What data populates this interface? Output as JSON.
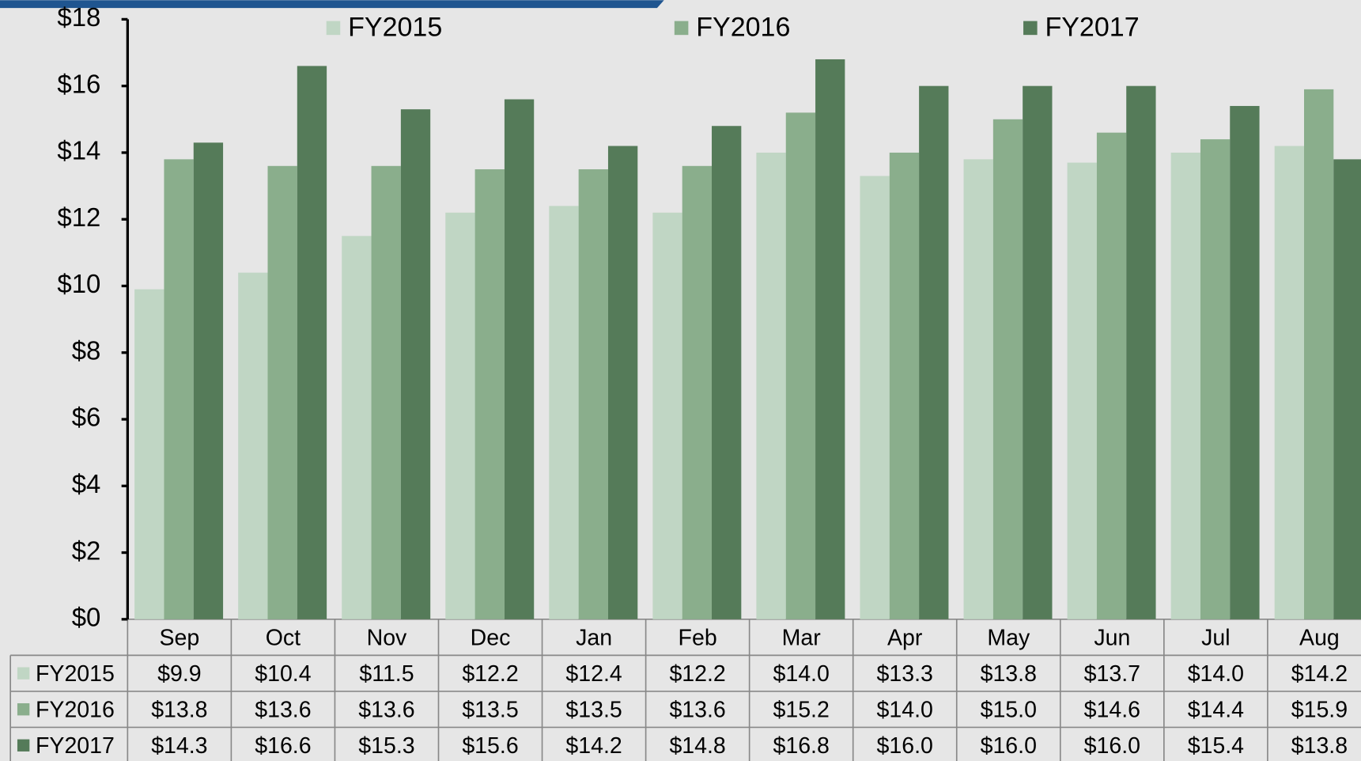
{
  "chart_data": {
    "type": "bar",
    "categories": [
      "Sep",
      "Oct",
      "Nov",
      "Dec",
      "Jan",
      "Feb",
      "Mar",
      "Apr",
      "May",
      "Jun",
      "Jul",
      "Aug"
    ],
    "series": [
      {
        "name": "FY2015",
        "color": "#c0d6c4",
        "values": [
          9.9,
          10.4,
          11.5,
          12.2,
          12.4,
          12.2,
          14.0,
          13.3,
          13.8,
          13.7,
          14.0,
          14.2
        ],
        "value_labels": [
          "$9.9",
          "$10.4",
          "$11.5",
          "$12.2",
          "$12.4",
          "$12.2",
          "$14.0",
          "$13.3",
          "$13.8",
          "$13.7",
          "$14.0",
          "$14.2"
        ]
      },
      {
        "name": "FY2016",
        "color": "#8aae8c",
        "values": [
          13.8,
          13.6,
          13.6,
          13.5,
          13.5,
          13.6,
          15.2,
          14.0,
          15.0,
          14.6,
          14.4,
          15.9
        ],
        "value_labels": [
          "$13.8",
          "$13.6",
          "$13.6",
          "$13.5",
          "$13.5",
          "$13.6",
          "$15.2",
          "$14.0",
          "$15.0",
          "$14.6",
          "$14.4",
          "$15.9"
        ]
      },
      {
        "name": "FY2017",
        "color": "#557b59",
        "values": [
          14.3,
          16.6,
          15.3,
          15.6,
          14.2,
          14.8,
          16.8,
          16.0,
          16.0,
          16.0,
          15.4,
          13.8
        ],
        "value_labels": [
          "$14.3",
          "$16.6",
          "$15.3",
          "$15.6",
          "$14.2",
          "$14.8",
          "$16.8",
          "$16.0",
          "$16.0",
          "$16.0",
          "$15.4",
          "$13.8"
        ]
      }
    ],
    "ylim": [
      0,
      18
    ],
    "yticks": [
      {
        "value": 0,
        "label": "$0"
      },
      {
        "value": 2,
        "label": "$2"
      },
      {
        "value": 4,
        "label": "$4"
      },
      {
        "value": 6,
        "label": "$6"
      },
      {
        "value": 8,
        "label": "$8"
      },
      {
        "value": 10,
        "label": "$10"
      },
      {
        "value": 12,
        "label": "$12"
      },
      {
        "value": 14,
        "label": "$14"
      },
      {
        "value": 16,
        "label": "$16"
      },
      {
        "value": 18,
        "label": "$18"
      }
    ],
    "legend": "top"
  }
}
